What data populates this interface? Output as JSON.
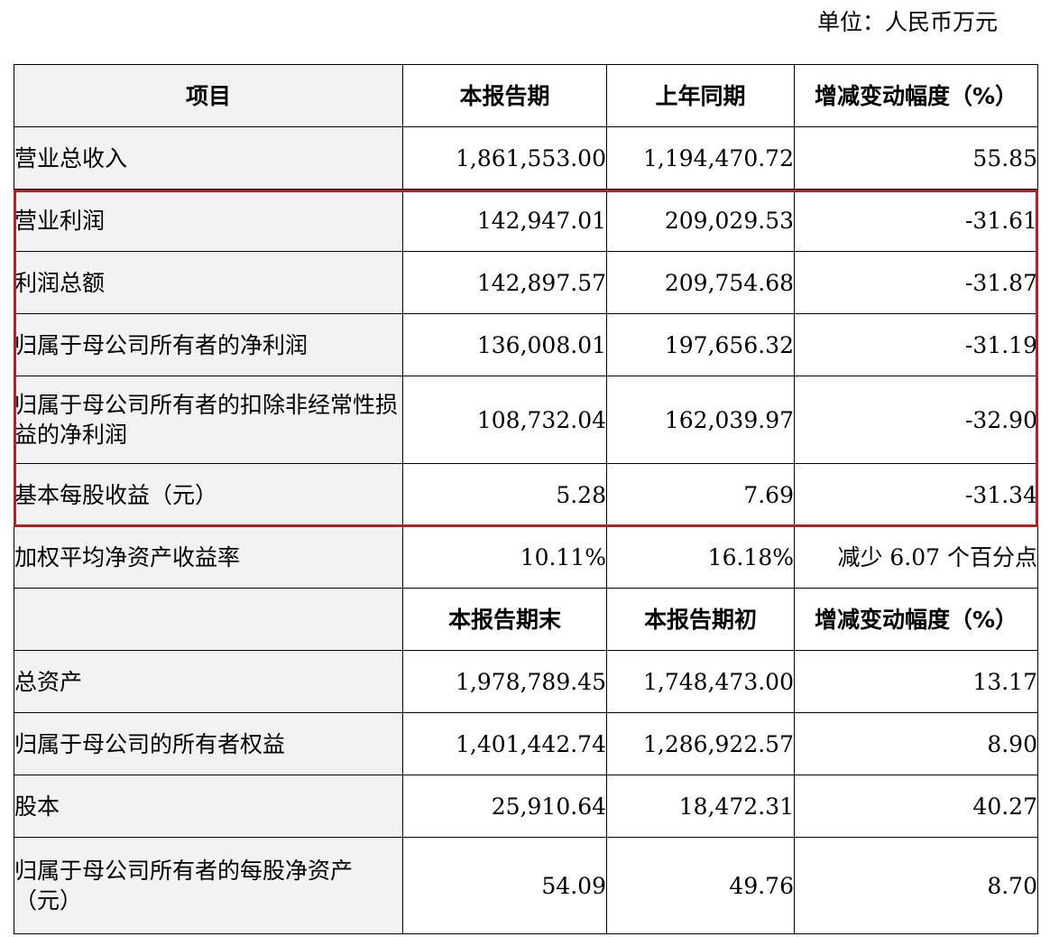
{
  "unit_label": "单位：人民币万元",
  "headers": {
    "item": "项目",
    "current": "本报告期",
    "prior": "上年同期",
    "change": "增减变动幅度（%）"
  },
  "rows_top": [
    {
      "item": "营业总收入",
      "current": "1,861,553.00",
      "prior": "1,194,470.72",
      "change": "55.85"
    },
    {
      "item": "营业利润",
      "current": "142,947.01",
      "prior": "209,029.53",
      "change": "-31.61"
    },
    {
      "item": "利润总额",
      "current": "142,897.57",
      "prior": "209,754.68",
      "change": "-31.87"
    },
    {
      "item": "归属于母公司所有者的净利润",
      "current": "136,008.01",
      "prior": "197,656.32",
      "change": "-31.19"
    },
    {
      "item": "归属于母公司所有者的扣除非经常性损益的净利润",
      "current": "108,732.04",
      "prior": "162,039.97",
      "change": "-32.90"
    },
    {
      "item": "基本每股收益（元）",
      "current": "5.28",
      "prior": "7.69",
      "change": "-31.34"
    },
    {
      "item": "加权平均净资产收益率",
      "current": "10.11%",
      "prior": "16.18%",
      "change": "减少 6.07 个百分点"
    }
  ],
  "headers2": {
    "item": "",
    "end": "本报告期末",
    "begin": "本报告期初",
    "change": "增减变动幅度（%）"
  },
  "rows_bottom": [
    {
      "item": "总资产",
      "end": "1,978,789.45",
      "begin": "1,748,473.00",
      "change": "13.17"
    },
    {
      "item": "归属于母公司的所有者权益",
      "end": "1,401,442.74",
      "begin": "1,286,922.57",
      "change": "8.90"
    },
    {
      "item": "股本",
      "end": "25,910.64",
      "begin": "18,472.31",
      "change": "40.27"
    },
    {
      "item": "归属于母公司所有者的每股净资产（元）",
      "end": "54.09",
      "begin": "49.76",
      "change": "8.70"
    }
  ],
  "highlight_color": "#b22222"
}
